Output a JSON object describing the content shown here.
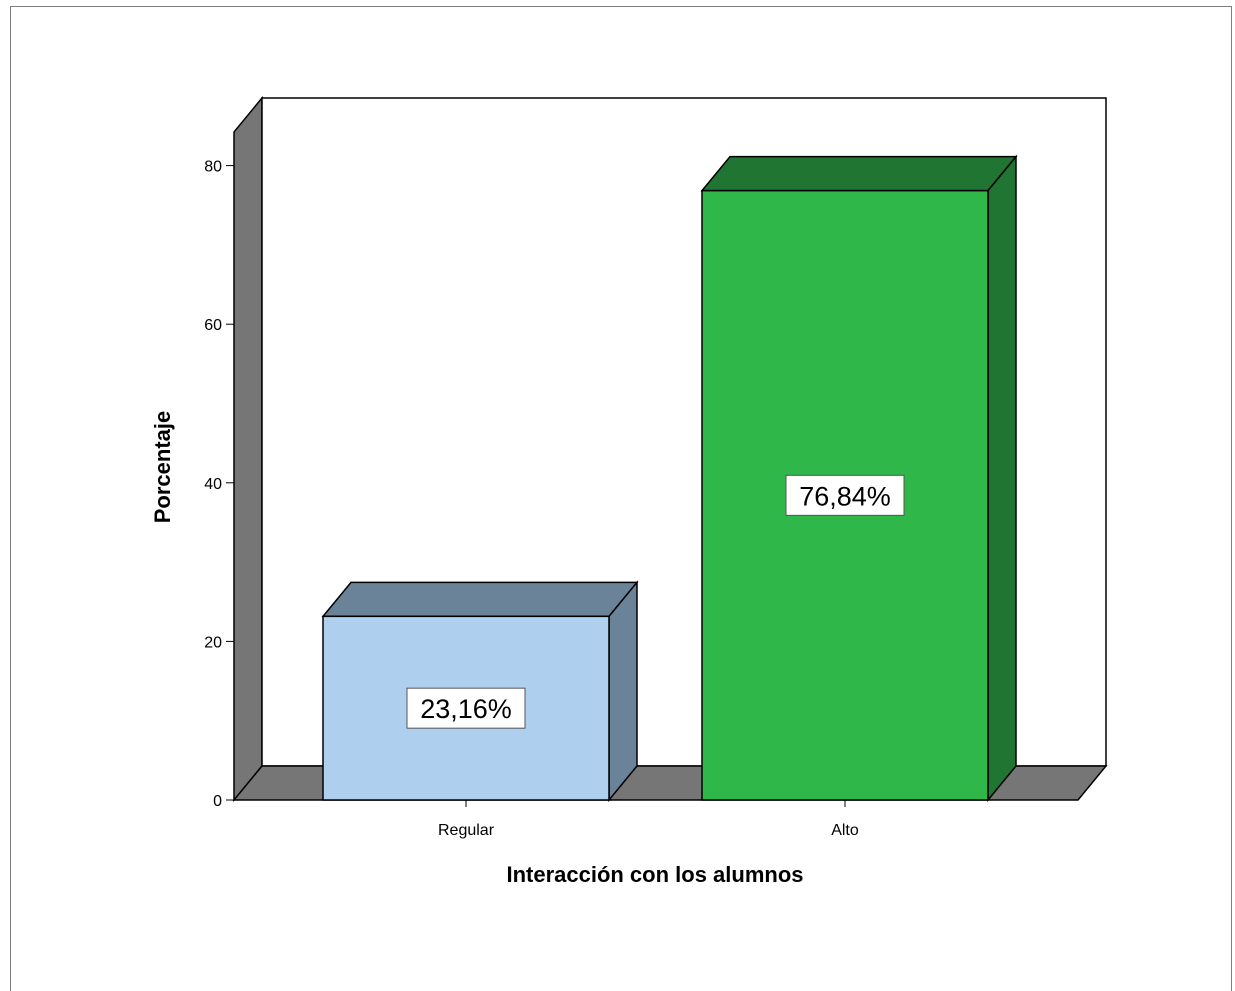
{
  "chart_data": {
    "type": "bar",
    "style": "3d",
    "categories": [
      "Regular",
      "Alto"
    ],
    "values": [
      23.16,
      76.84
    ],
    "data_labels": [
      "23,16%",
      "76,84%"
    ],
    "xlabel": "Interacción con los alumnos",
    "ylabel": "Porcentaje",
    "ylim": [
      0,
      80
    ],
    "yticks": [
      0,
      20,
      40,
      60,
      80
    ],
    "grid": false,
    "colors": {
      "Regular": {
        "front": "#aecfee",
        "top": "#6a8398",
        "side": "#6a8398"
      },
      "Alto": {
        "front": "#30b74a",
        "top": "#1f7531",
        "side": "#1f7531"
      },
      "walls": "#767676"
    }
  }
}
